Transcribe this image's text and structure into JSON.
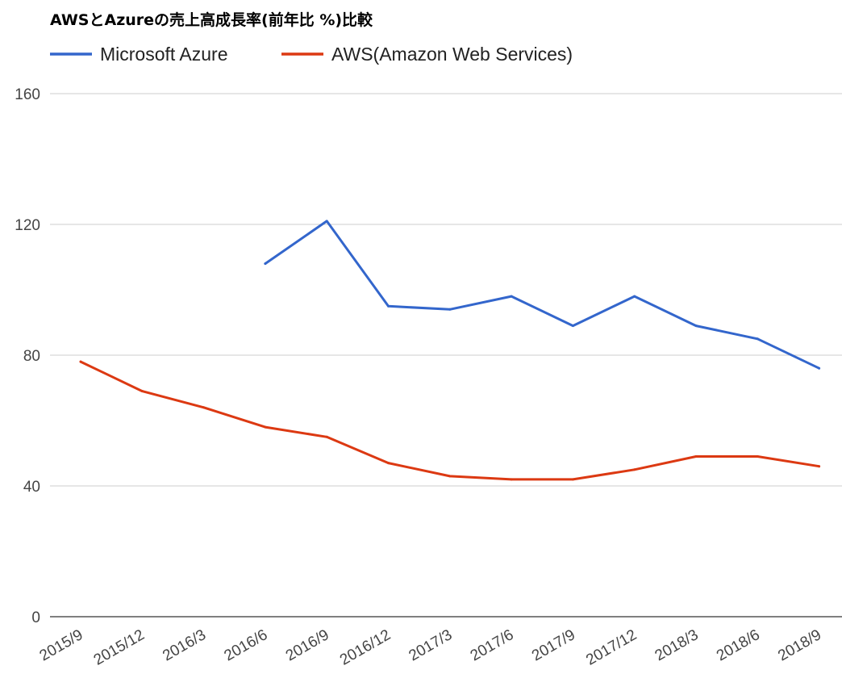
{
  "chart_data": {
    "type": "line",
    "title": "AWSとAzureの売上高成長率(前年比 %)比較",
    "categories": [
      "2015/9",
      "2015/12",
      "2016/3",
      "2016/6",
      "2016/9",
      "2016/12",
      "2017/3",
      "2017/6",
      "2017/9",
      "2017/12",
      "2018/3",
      "2018/6",
      "2018/9"
    ],
    "series": [
      {
        "name": "Microsoft Azure",
        "color": "#3366cc",
        "values": [
          null,
          null,
          null,
          108,
          121,
          95,
          94,
          98,
          89,
          98,
          89,
          85,
          76
        ]
      },
      {
        "name": "AWS(Amazon Web Services)",
        "color": "#dc3912",
        "values": [
          78,
          69,
          64,
          58,
          55,
          47,
          43,
          42,
          42,
          45,
          49,
          49,
          46
        ]
      }
    ],
    "xlabel": "",
    "ylabel": "",
    "ylim": [
      0,
      160
    ],
    "yticks": [
      0,
      40,
      80,
      120,
      160
    ],
    "grid": true,
    "legend": "top-left"
  }
}
